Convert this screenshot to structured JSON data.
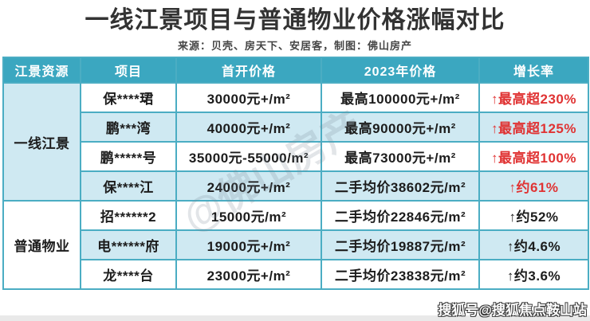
{
  "title": "一线江景项目与普通物业价格涨幅对比",
  "source": "来源：贝壳、房天下、安居客，制图：佛山房产",
  "table": {
    "headers": [
      "江景资源",
      "项目",
      "首开价格",
      "2023年价格",
      "增长率"
    ],
    "groups": [
      {
        "label": "一线江景",
        "rows": [
          {
            "project": "保****珺",
            "first_price": "30000元+/m²",
            "price_2023": "最高100000元+/m²",
            "growth": "↑最高超230%",
            "growth_color": "red"
          },
          {
            "project": "鹏***湾",
            "first_price": "40000元+/m²",
            "price_2023": "最高90000元+/m²",
            "growth": "↑最高超125%",
            "growth_color": "red"
          },
          {
            "project": "鹏*****号",
            "first_price": "35000元-55000/m²",
            "price_2023": "最高73000元+/m²",
            "growth": "↑最高超100%",
            "growth_color": "red"
          },
          {
            "project": "保****江",
            "first_price": "24000元+/m²",
            "price_2023": "二手均价38602元/m²",
            "growth": "↑约61%",
            "growth_color": "red"
          }
        ]
      },
      {
        "label": "普通物业",
        "rows": [
          {
            "project": "招******2",
            "first_price": "15000元/m²",
            "price_2023": "二手均价22846元/m²",
            "growth": "↑约52%",
            "growth_color": "dark"
          },
          {
            "project": "电******府",
            "first_price": "19000元+/m²",
            "price_2023": "二手均价19887元/m²",
            "growth": "↑约4.6%",
            "growth_color": "dark"
          },
          {
            "project": "龙****台",
            "first_price": "23000元+/m²",
            "price_2023": "二手均价23838元/m²",
            "growth": "↑约3.6%",
            "growth_color": "dark"
          }
        ]
      }
    ]
  },
  "watermarks": {
    "center": "@佛山房产",
    "corner": "搜狐号@搜狐焦点鞍山站"
  },
  "colors": {
    "header_bg": "#3BA7C0",
    "row_alt_bg": "#CFE9F2",
    "border": "#4BADC3",
    "growth_red": "#E03333",
    "title_text": "#333333"
  },
  "chart_data": {
    "type": "table",
    "title": "一线江景项目与普通物业价格涨幅对比",
    "source": "来源：贝壳、房天下、安居客，制图：佛山房产",
    "columns": [
      "江景资源",
      "项目",
      "首开价格",
      "2023年价格",
      "增长率"
    ],
    "rows": [
      [
        "一线江景",
        "保****珺",
        "30000元+/m²",
        "最高100000元+/m²",
        "↑最高超230%"
      ],
      [
        "一线江景",
        "鹏***湾",
        "40000元+/m²",
        "最高90000元+/m²",
        "↑最高超125%"
      ],
      [
        "一线江景",
        "鹏*****号",
        "35000元-55000/m²",
        "最高73000元+/m²",
        "↑最高超100%"
      ],
      [
        "一线江景",
        "保****江",
        "24000元+/m²",
        "二手均价38602元/m²",
        "↑约61%"
      ],
      [
        "普通物业",
        "招******2",
        "15000元/m²",
        "二手均价22846元/m²",
        "↑约52%"
      ],
      [
        "普通物业",
        "电******府",
        "19000元+/m²",
        "二手均价19887元/m²",
        "↑约4.6%"
      ],
      [
        "普通物业",
        "龙****台",
        "23000元+/m²",
        "二手均价23838元/m²",
        "↑约3.6%"
      ]
    ]
  }
}
